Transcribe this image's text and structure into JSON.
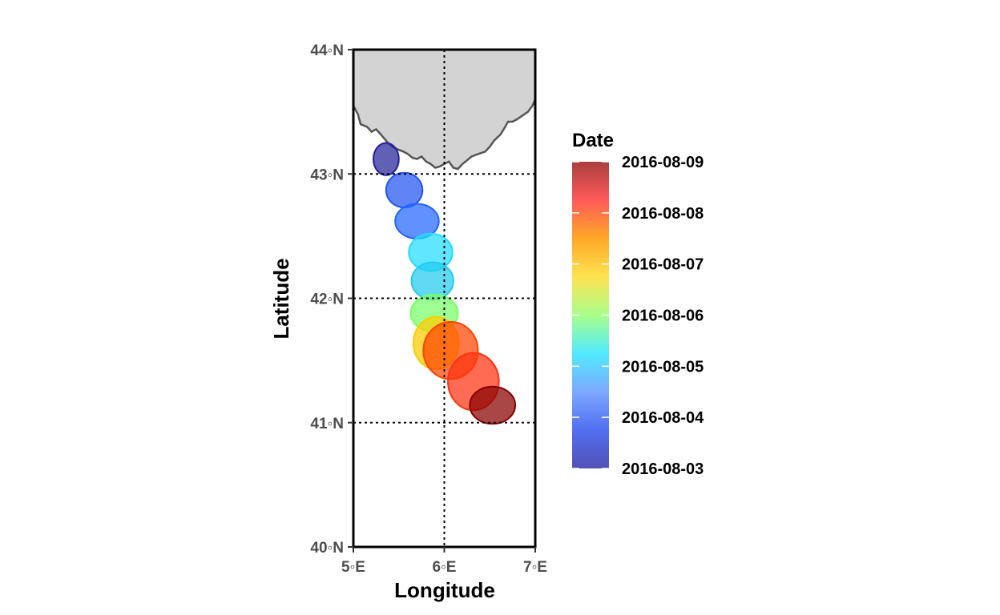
{
  "chart_data": {
    "type": "map-track",
    "xlabel": "Longitude",
    "ylabel": "Latitude",
    "xlim": [
      5,
      7
    ],
    "ylim": [
      40,
      44
    ],
    "x_ticks": [
      {
        "value": 5,
        "label": "5◦E"
      },
      {
        "value": 6,
        "label": "6◦E"
      },
      {
        "value": 7,
        "label": "7◦E"
      }
    ],
    "y_ticks": [
      {
        "value": 40,
        "label": "40◦N"
      },
      {
        "value": 41,
        "label": "41◦N"
      },
      {
        "value": 42,
        "label": "42◦N"
      },
      {
        "value": 43,
        "label": "43◦N"
      },
      {
        "value": 44,
        "label": "44◦N"
      }
    ],
    "grid_lines": {
      "lon": [
        6
      ],
      "lat": [
        41,
        42,
        43
      ],
      "style": "dotted"
    },
    "land_color": "#d3d3d3",
    "coast_color": "#555555",
    "coastline": [
      [
        5.0,
        43.55
      ],
      [
        5.05,
        43.48
      ],
      [
        5.08,
        43.4
      ],
      [
        5.15,
        43.38
      ],
      [
        5.2,
        43.34
      ],
      [
        5.25,
        43.36
      ],
      [
        5.3,
        43.32
      ],
      [
        5.38,
        43.25
      ],
      [
        5.43,
        43.22
      ],
      [
        5.48,
        43.2
      ],
      [
        5.55,
        43.18
      ],
      [
        5.6,
        43.16
      ],
      [
        5.65,
        43.13
      ],
      [
        5.7,
        43.12
      ],
      [
        5.75,
        43.14
      ],
      [
        5.8,
        43.1
      ],
      [
        5.85,
        43.08
      ],
      [
        5.9,
        43.05
      ],
      [
        5.95,
        43.06
      ],
      [
        6.0,
        43.08
      ],
      [
        6.05,
        43.1
      ],
      [
        6.1,
        43.05
      ],
      [
        6.15,
        43.04
      ],
      [
        6.2,
        43.08
      ],
      [
        6.25,
        43.11
      ],
      [
        6.3,
        43.14
      ],
      [
        6.37,
        43.16
      ],
      [
        6.45,
        43.18
      ],
      [
        6.5,
        43.22
      ],
      [
        6.55,
        43.27
      ],
      [
        6.62,
        43.32
      ],
      [
        6.67,
        43.38
      ],
      [
        6.7,
        43.42
      ],
      [
        6.75,
        43.42
      ],
      [
        6.8,
        43.44
      ],
      [
        6.86,
        43.47
      ],
      [
        6.92,
        43.5
      ],
      [
        6.97,
        43.55
      ],
      [
        7.0,
        43.6
      ]
    ],
    "track": [
      {
        "date": "2016-08-03",
        "lon": 5.36,
        "lat": 43.12,
        "rx": 0.14,
        "ry": 0.13,
        "color": "#222299"
      },
      {
        "date": "2016-08-03",
        "lon": 5.56,
        "lat": 42.87,
        "rx": 0.2,
        "ry": 0.14,
        "color": "#2255ee"
      },
      {
        "date": "2016-08-04",
        "lon": 5.7,
        "lat": 42.62,
        "rx": 0.24,
        "ry": 0.14,
        "color": "#2266ff"
      },
      {
        "date": "2016-08-05",
        "lon": 5.85,
        "lat": 42.37,
        "rx": 0.24,
        "ry": 0.15,
        "color": "#22ddff"
      },
      {
        "date": "2016-08-05",
        "lon": 5.87,
        "lat": 42.14,
        "rx": 0.23,
        "ry": 0.15,
        "color": "#22ccf0"
      },
      {
        "date": "2016-08-06",
        "lon": 5.89,
        "lat": 41.88,
        "rx": 0.26,
        "ry": 0.15,
        "color": "#77ff66"
      },
      {
        "date": "2016-08-07",
        "lon": 5.91,
        "lat": 41.64,
        "rx": 0.25,
        "ry": 0.21,
        "color": "#ffcc00"
      },
      {
        "date": "2016-08-08",
        "lon": 6.07,
        "lat": 41.58,
        "rx": 0.3,
        "ry": 0.23,
        "color": "#ff4400"
      },
      {
        "date": "2016-08-08",
        "lon": 6.32,
        "lat": 41.33,
        "rx": 0.28,
        "ry": 0.23,
        "color": "#ff3311"
      },
      {
        "date": "2016-08-09",
        "lon": 6.53,
        "lat": 41.14,
        "rx": 0.25,
        "ry": 0.15,
        "color": "#880000"
      }
    ],
    "legend": {
      "title": "Date",
      "labels": [
        "2016-08-09",
        "2016-08-08",
        "2016-08-07",
        "2016-08-06",
        "2016-08-05",
        "2016-08-04",
        "2016-08-03"
      ],
      "gradient_colors": [
        "#9b1c1c",
        "#ff3d3d",
        "#ff9900",
        "#ffdd33",
        "#99ff77",
        "#33e6ff",
        "#6699ff",
        "#3355ee",
        "#3333aa"
      ],
      "placement": "right"
    }
  }
}
